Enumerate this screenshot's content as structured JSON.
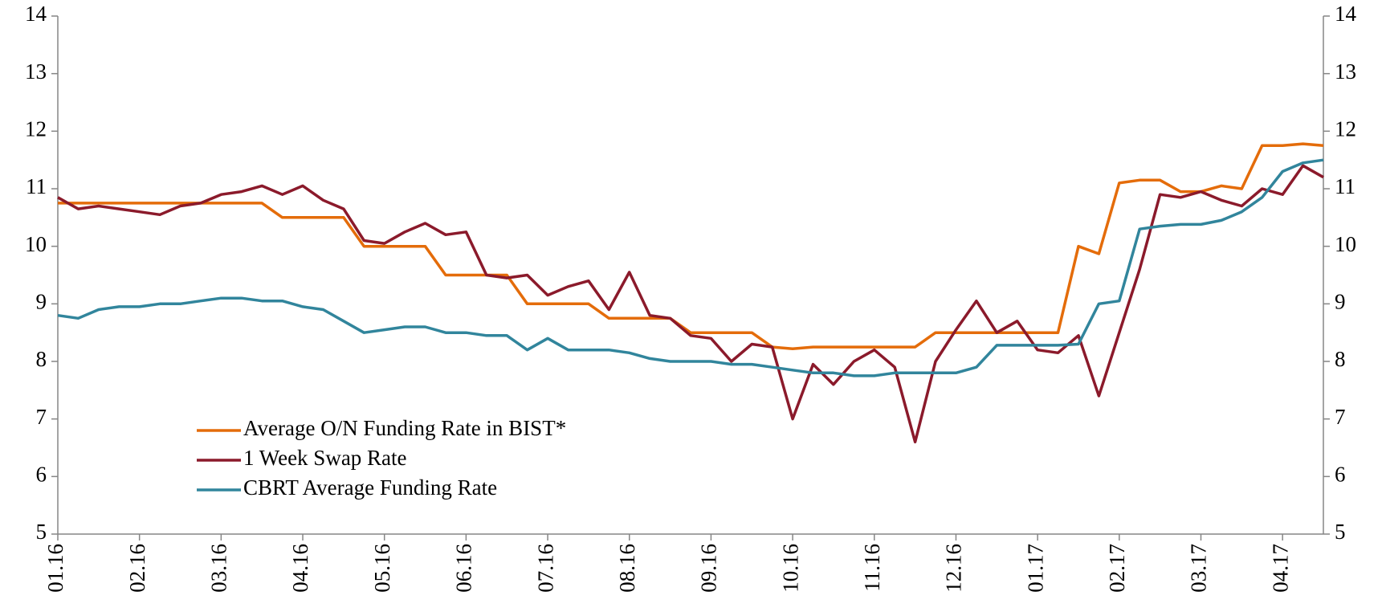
{
  "chart_data": {
    "type": "line",
    "categories": [
      "01.16",
      null,
      null,
      null,
      "02.16",
      null,
      null,
      null,
      "03.16",
      null,
      null,
      null,
      "04.16",
      null,
      null,
      null,
      "05.16",
      null,
      null,
      null,
      "06.16",
      null,
      null,
      null,
      "07.16",
      null,
      null,
      null,
      "08.16",
      null,
      null,
      null,
      "09.16",
      null,
      null,
      null,
      "10.16",
      null,
      null,
      null,
      "11.16",
      null,
      null,
      null,
      "12.16",
      null,
      null,
      null,
      "01.17",
      null,
      null,
      null,
      "02.17",
      null,
      null,
      null,
      "03.17",
      null,
      null,
      null,
      "04.17",
      null,
      null
    ],
    "series": [
      {
        "name": "Average O/N Funding Rate in BIST*",
        "color": "#e46c0a",
        "values": [
          10.75,
          10.75,
          10.75,
          10.75,
          10.75,
          10.75,
          10.75,
          10.75,
          10.75,
          10.75,
          10.75,
          10.5,
          10.5,
          10.5,
          10.5,
          10.0,
          10.0,
          10.0,
          10.0,
          9.5,
          9.5,
          9.5,
          9.5,
          9.0,
          9.0,
          9.0,
          9.0,
          8.75,
          8.75,
          8.75,
          8.75,
          8.5,
          8.5,
          8.5,
          8.5,
          8.25,
          8.22,
          8.25,
          8.25,
          8.25,
          8.25,
          8.25,
          8.25,
          8.5,
          8.5,
          8.5,
          8.5,
          8.5,
          8.5,
          8.5,
          10.0,
          9.87,
          11.1,
          11.15,
          11.15,
          10.95,
          10.95,
          11.05,
          11.0,
          11.75,
          11.75,
          11.78,
          11.75
        ]
      },
      {
        "name": "1 Week Swap Rate",
        "color": "#8b1a2b",
        "values": [
          10.85,
          10.65,
          10.7,
          10.65,
          10.6,
          10.55,
          10.7,
          10.75,
          10.9,
          10.95,
          11.05,
          10.9,
          11.05,
          10.8,
          10.65,
          10.1,
          10.05,
          10.25,
          10.4,
          10.2,
          10.25,
          9.5,
          9.45,
          9.5,
          9.15,
          9.3,
          9.4,
          8.9,
          9.55,
          8.8,
          8.75,
          8.45,
          8.4,
          8.0,
          8.3,
          8.25,
          7.0,
          7.95,
          7.6,
          8.0,
          8.2,
          7.9,
          6.6,
          8.0,
          8.55,
          9.05,
          8.5,
          8.7,
          8.2,
          8.15,
          8.45,
          7.4,
          8.5,
          9.6,
          10.9,
          10.85,
          10.95,
          10.8,
          10.7,
          11.0,
          10.9,
          11.4,
          11.2
        ]
      },
      {
        "name": "CBRT Average Funding Rate",
        "color": "#31859c",
        "values": [
          8.8,
          8.75,
          8.9,
          8.95,
          8.95,
          9.0,
          9.0,
          9.05,
          9.1,
          9.1,
          9.05,
          9.05,
          8.95,
          8.9,
          8.7,
          8.5,
          8.55,
          8.6,
          8.6,
          8.5,
          8.5,
          8.45,
          8.45,
          8.2,
          8.4,
          8.2,
          8.2,
          8.2,
          8.15,
          8.05,
          8.0,
          8.0,
          8.0,
          7.95,
          7.95,
          7.9,
          7.85,
          7.8,
          7.8,
          7.75,
          7.75,
          7.8,
          7.8,
          7.8,
          7.8,
          7.9,
          8.28,
          8.28,
          8.28,
          8.28,
          8.3,
          9.0,
          9.05,
          10.3,
          10.35,
          10.38,
          10.38,
          10.45,
          10.6,
          10.85,
          11.3,
          11.45,
          11.5
        ]
      }
    ],
    "ylim": [
      5,
      14
    ],
    "yticks": [
      5,
      6,
      7,
      8,
      9,
      10,
      11,
      12,
      13,
      14
    ],
    "y2lim": [
      5,
      14
    ],
    "y2ticks": [
      5,
      6,
      7,
      8,
      9,
      10,
      11,
      12,
      13,
      14
    ],
    "grid": false,
    "legend": "lower left"
  }
}
